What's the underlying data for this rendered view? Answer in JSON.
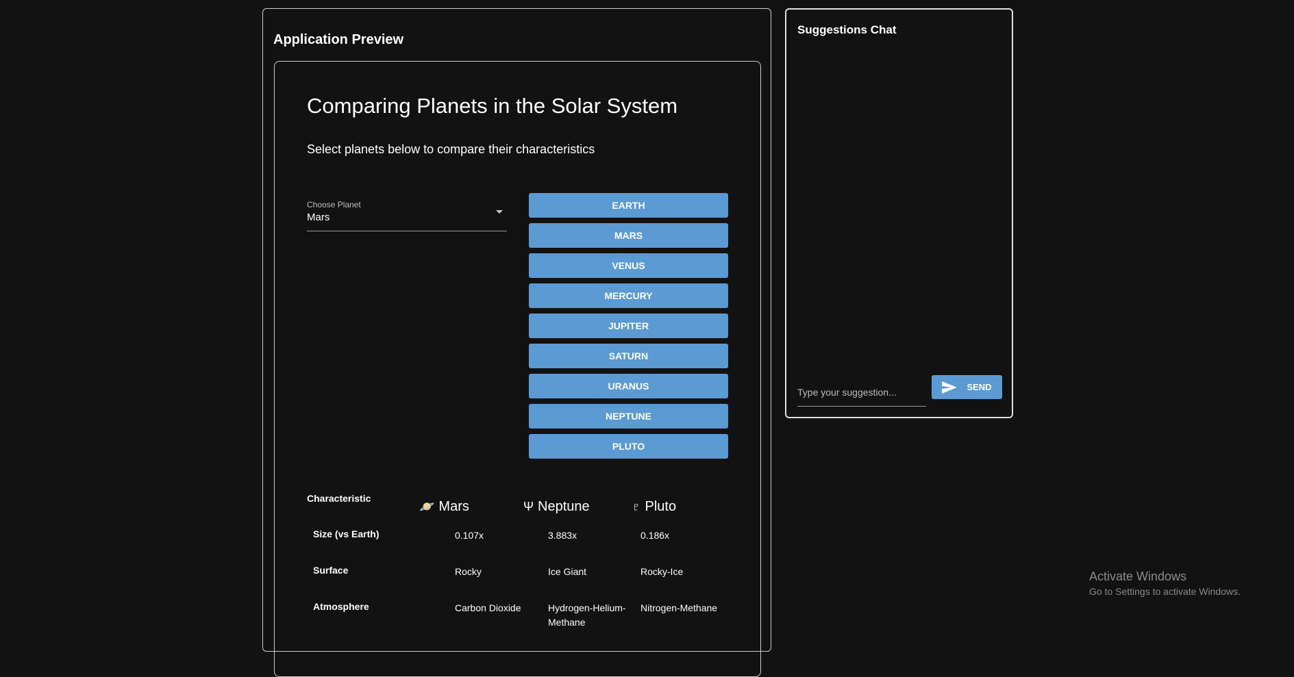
{
  "preview": {
    "title": "Application Preview"
  },
  "app": {
    "title": "Comparing Planets in the Solar System",
    "subtitle": "Select planets below to compare their characteristics",
    "select": {
      "label": "Choose Planet",
      "value": "Mars"
    },
    "planet_buttons": [
      "EARTH",
      "MARS",
      "VENUS",
      "MERCURY",
      "JUPITER",
      "SATURN",
      "URANUS",
      "NEPTUNE",
      "PLUTO"
    ],
    "table": {
      "header": "Characteristic",
      "planets": [
        {
          "symbol": "🪐",
          "name": "Mars"
        },
        {
          "symbol": "Ψ",
          "name": "Neptune"
        },
        {
          "symbol": "♇",
          "name": "Pluto"
        }
      ],
      "rows": [
        {
          "label": "Size (vs Earth)",
          "values": [
            "0.107x",
            "3.883x",
            "0.186x"
          ]
        },
        {
          "label": "Surface",
          "values": [
            "Rocky",
            "Ice Giant",
            "Rocky-Ice"
          ]
        },
        {
          "label": "Atmosphere",
          "values": [
            "Carbon Dioxide",
            "Hydrogen-Helium-Methane",
            "Nitrogen-Methane"
          ]
        }
      ]
    }
  },
  "chat": {
    "title": "Suggestions Chat",
    "placeholder": "Type your suggestion...",
    "send_label": "SEND"
  },
  "watermark": {
    "line1": "Activate Windows",
    "line2": "Go to Settings to activate Windows."
  },
  "colors": {
    "background": "#121212",
    "button": "#5b9ad3"
  }
}
